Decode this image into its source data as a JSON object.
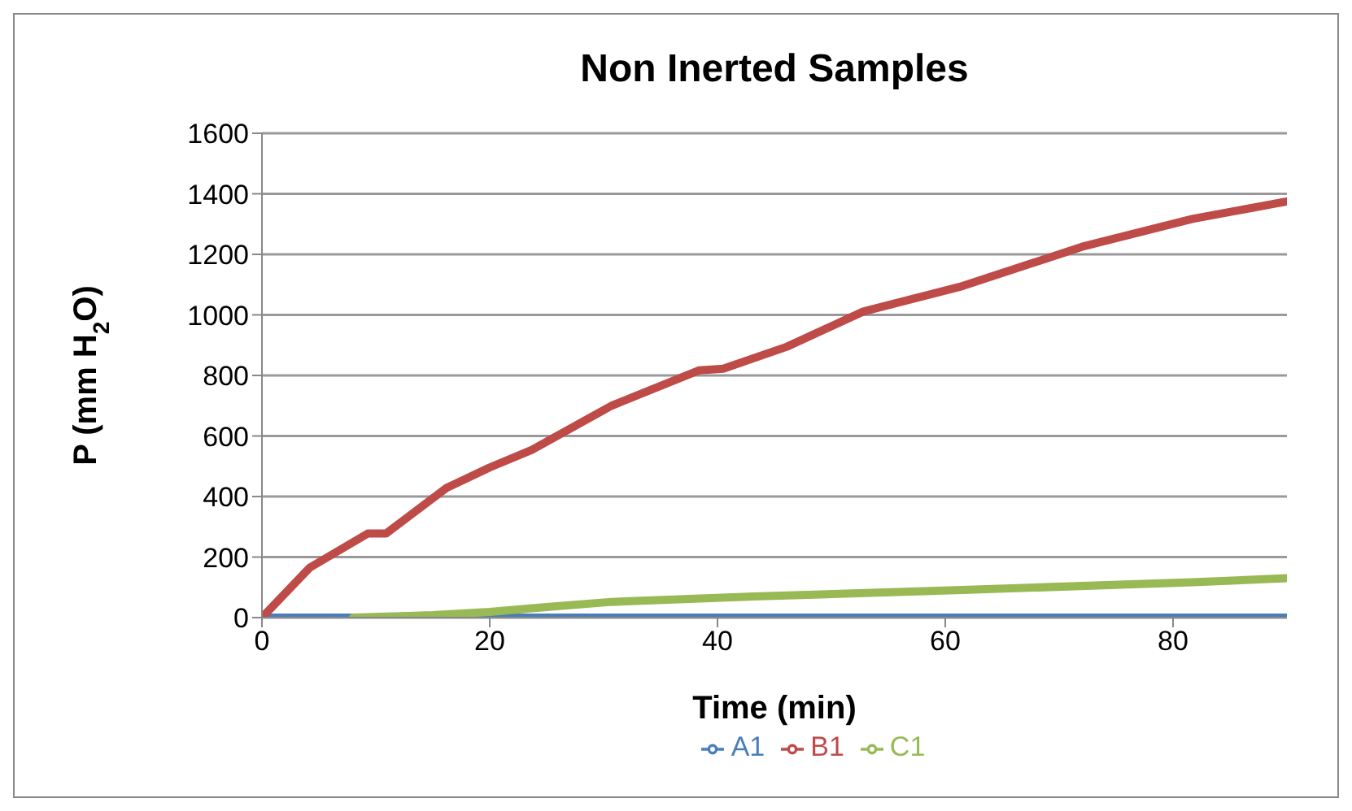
{
  "chart_data": {
    "type": "line",
    "title": "Non Inerted Samples",
    "xlabel": "Time (min)",
    "ylabel": "P (mm H$_{2}$O)",
    "xlim": [
      0,
      90
    ],
    "xticks": [
      0,
      20,
      40,
      60,
      80
    ],
    "ylim": [
      0,
      1600
    ],
    "yticks": [
      0,
      200,
      400,
      600,
      800,
      1000,
      1200,
      1400,
      1600
    ],
    "grid": "y",
    "legend": "bottom",
    "line_style": "solid",
    "series": [
      {
        "name": "A1",
        "color": "#4a7ebb",
        "x": [
          0,
          10,
          20,
          30,
          40,
          50,
          60,
          70,
          80,
          90
        ],
        "values": [
          0,
          0,
          0,
          0,
          0,
          0,
          0,
          0,
          0,
          0
        ]
      },
      {
        "name": "B1",
        "color": "#be4b48",
        "x": [
          0,
          4.2,
          9.3,
          10.9,
          16.2,
          20,
          23.7,
          30.7,
          38.4,
          40.5,
          46.1,
          52.8,
          61.5,
          72,
          81.7,
          90
        ],
        "values": [
          0,
          165,
          278,
          278,
          428,
          496,
          554,
          700,
          817,
          822,
          895,
          1011,
          1095,
          1225,
          1317,
          1375
        ]
      },
      {
        "name": "C1",
        "color": "#98b954",
        "x": [
          8,
          15,
          20,
          25,
          30.7,
          43.2,
          61.5,
          81.7,
          90
        ],
        "values": [
          0,
          8,
          19,
          35,
          52,
          70,
          91,
          117,
          130
        ]
      }
    ]
  }
}
